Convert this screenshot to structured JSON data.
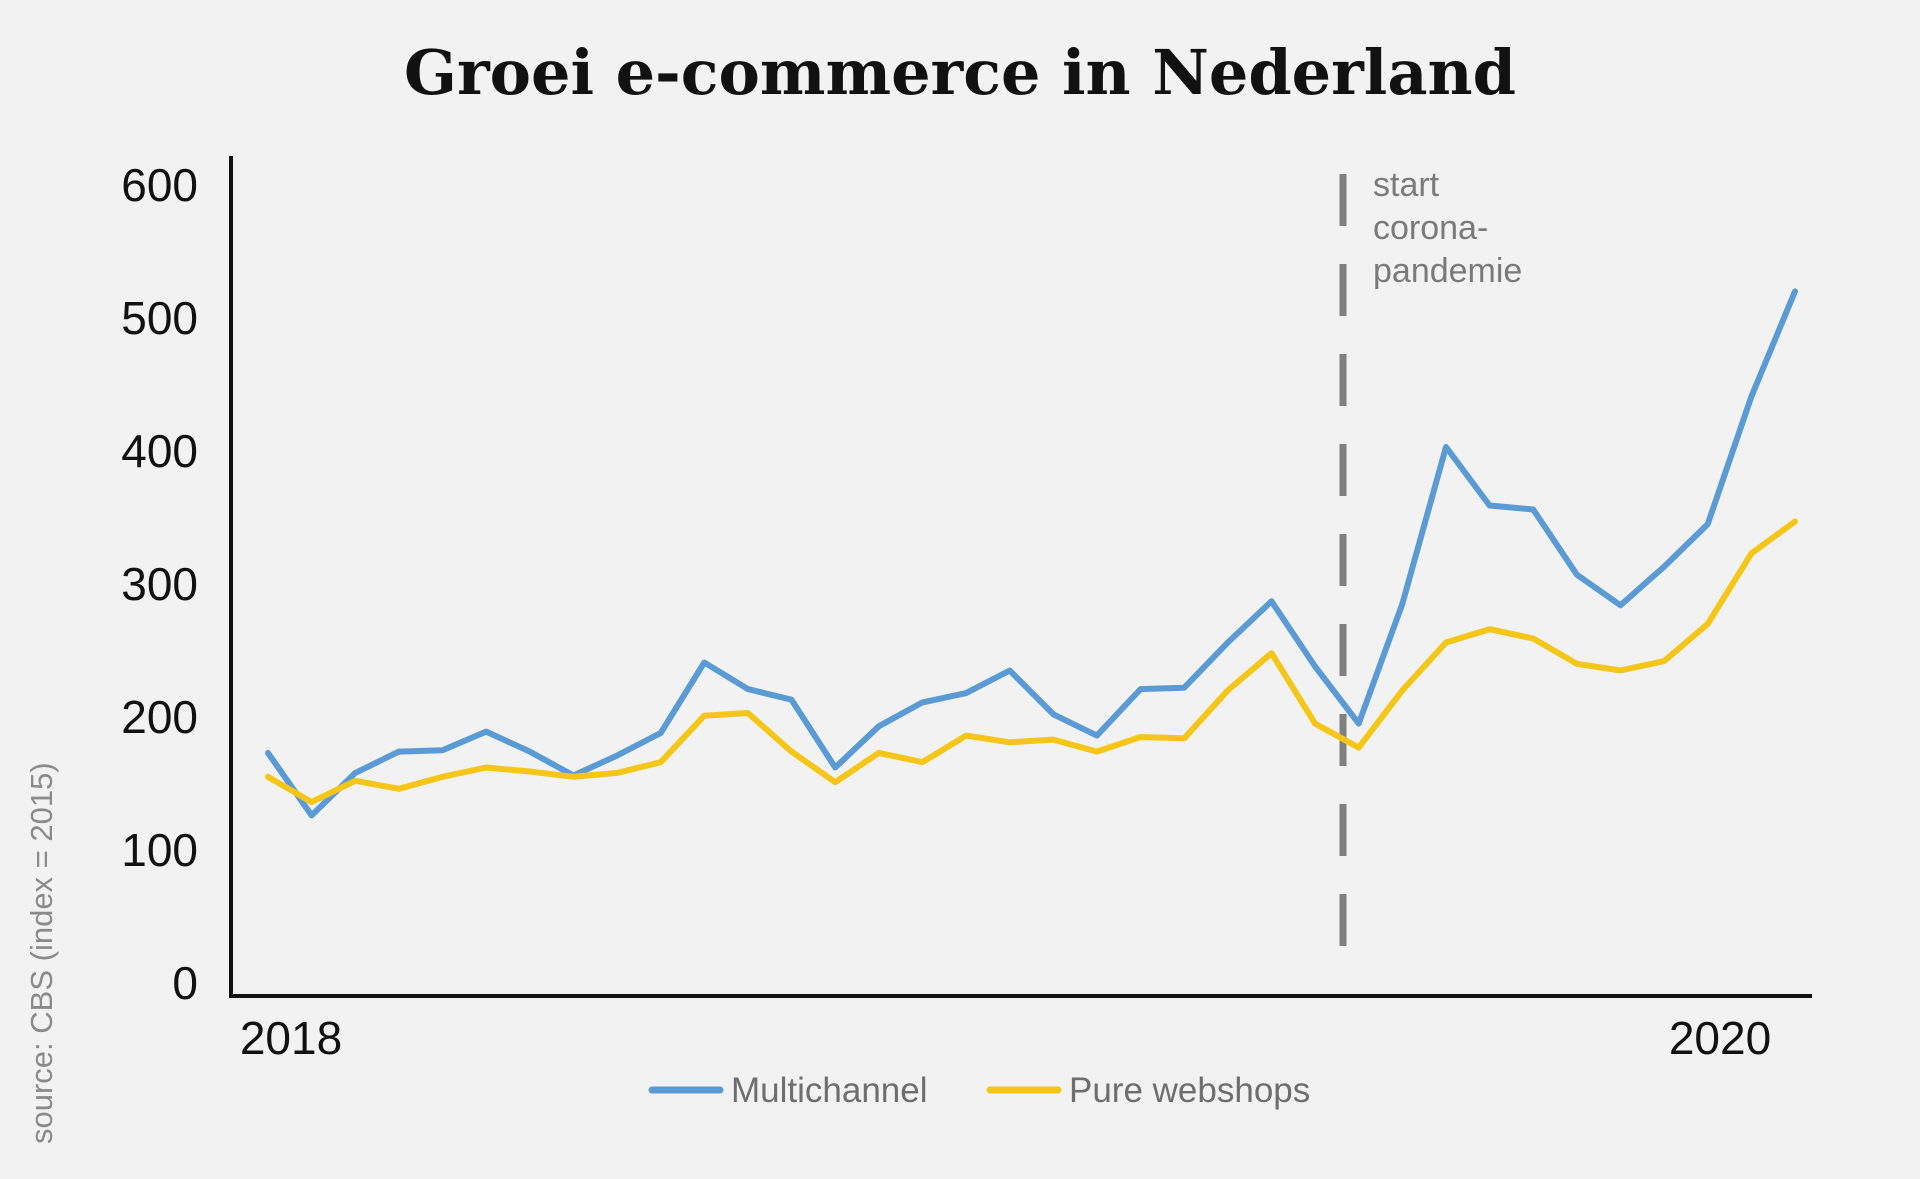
{
  "chart_data": {
    "type": "line",
    "title": "Groei e-commerce in Nederland",
    "source": "source: CBS (index = 2015)",
    "ylim": [
      0,
      600
    ],
    "yticks": [
      0,
      100,
      200,
      300,
      400,
      500,
      600
    ],
    "x_tick_labels": [
      "2018",
      "2020"
    ],
    "grid": false,
    "legend_position": "bottom",
    "annotation": {
      "lines": [
        "start",
        "corona-",
        "pandemie"
      ],
      "color": "#808080"
    },
    "series": [
      {
        "name": "Multichannel",
        "color": "#5b9bd5",
        "values": [
          173,
          126,
          158,
          174,
          175,
          189,
          174,
          156,
          171,
          188,
          241,
          221,
          213,
          162,
          193,
          211,
          218,
          235,
          202,
          186,
          221,
          222,
          256,
          287,
          238,
          195,
          285,
          403,
          359,
          356,
          307,
          284,
          313,
          345,
          441,
          520
        ]
      },
      {
        "name": "Pure webshops",
        "color": "#f5c518",
        "values": [
          155,
          136,
          152,
          146,
          155,
          162,
          159,
          155,
          158,
          166,
          201,
          203,
          174,
          151,
          173,
          166,
          186,
          181,
          183,
          174,
          185,
          184,
          220,
          248,
          195,
          177,
          220,
          256,
          266,
          259,
          240,
          235,
          242,
          270,
          323,
          347
        ]
      }
    ]
  }
}
